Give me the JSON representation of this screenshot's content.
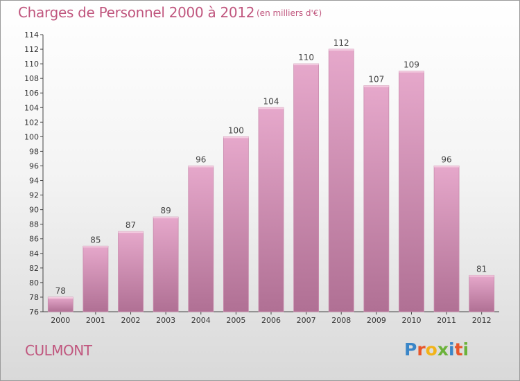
{
  "header": {
    "title": "Charges de Personnel 2000 à 2012",
    "subtitle": "(en milliers d'€)"
  },
  "footer": {
    "city": "CULMONT",
    "logo": "Proxiti"
  },
  "colors": {
    "title": "#c0567e",
    "bar_top": "#e6a8cb",
    "bar_bottom": "#b07094",
    "logo_letters": [
      "#3a86c8",
      "#e8562a",
      "#f2b318",
      "#6bb23a",
      "#3a86c8",
      "#e8562a",
      "#6bb23a"
    ]
  },
  "chart_data": {
    "type": "bar",
    "categories": [
      "2000",
      "2001",
      "2002",
      "2003",
      "2004",
      "2005",
      "2006",
      "2007",
      "2008",
      "2009",
      "2010",
      "2011",
      "2012"
    ],
    "values": [
      78,
      85,
      87,
      89,
      96,
      100,
      104,
      110,
      112,
      107,
      109,
      96,
      81
    ],
    "data_labels": [
      "78",
      "85",
      "87",
      "89",
      "96",
      "100",
      "104",
      "110",
      "112",
      "107",
      "109",
      "96",
      "81"
    ],
    "title": "Charges de Personnel 2000 à 2012",
    "xlabel": "",
    "ylabel": "",
    "ylim": [
      76,
      114
    ],
    "yticks": [
      76,
      78,
      80,
      82,
      84,
      86,
      88,
      90,
      92,
      94,
      96,
      98,
      100,
      102,
      104,
      106,
      108,
      110,
      112,
      114
    ],
    "grid": false,
    "legend": "none"
  }
}
